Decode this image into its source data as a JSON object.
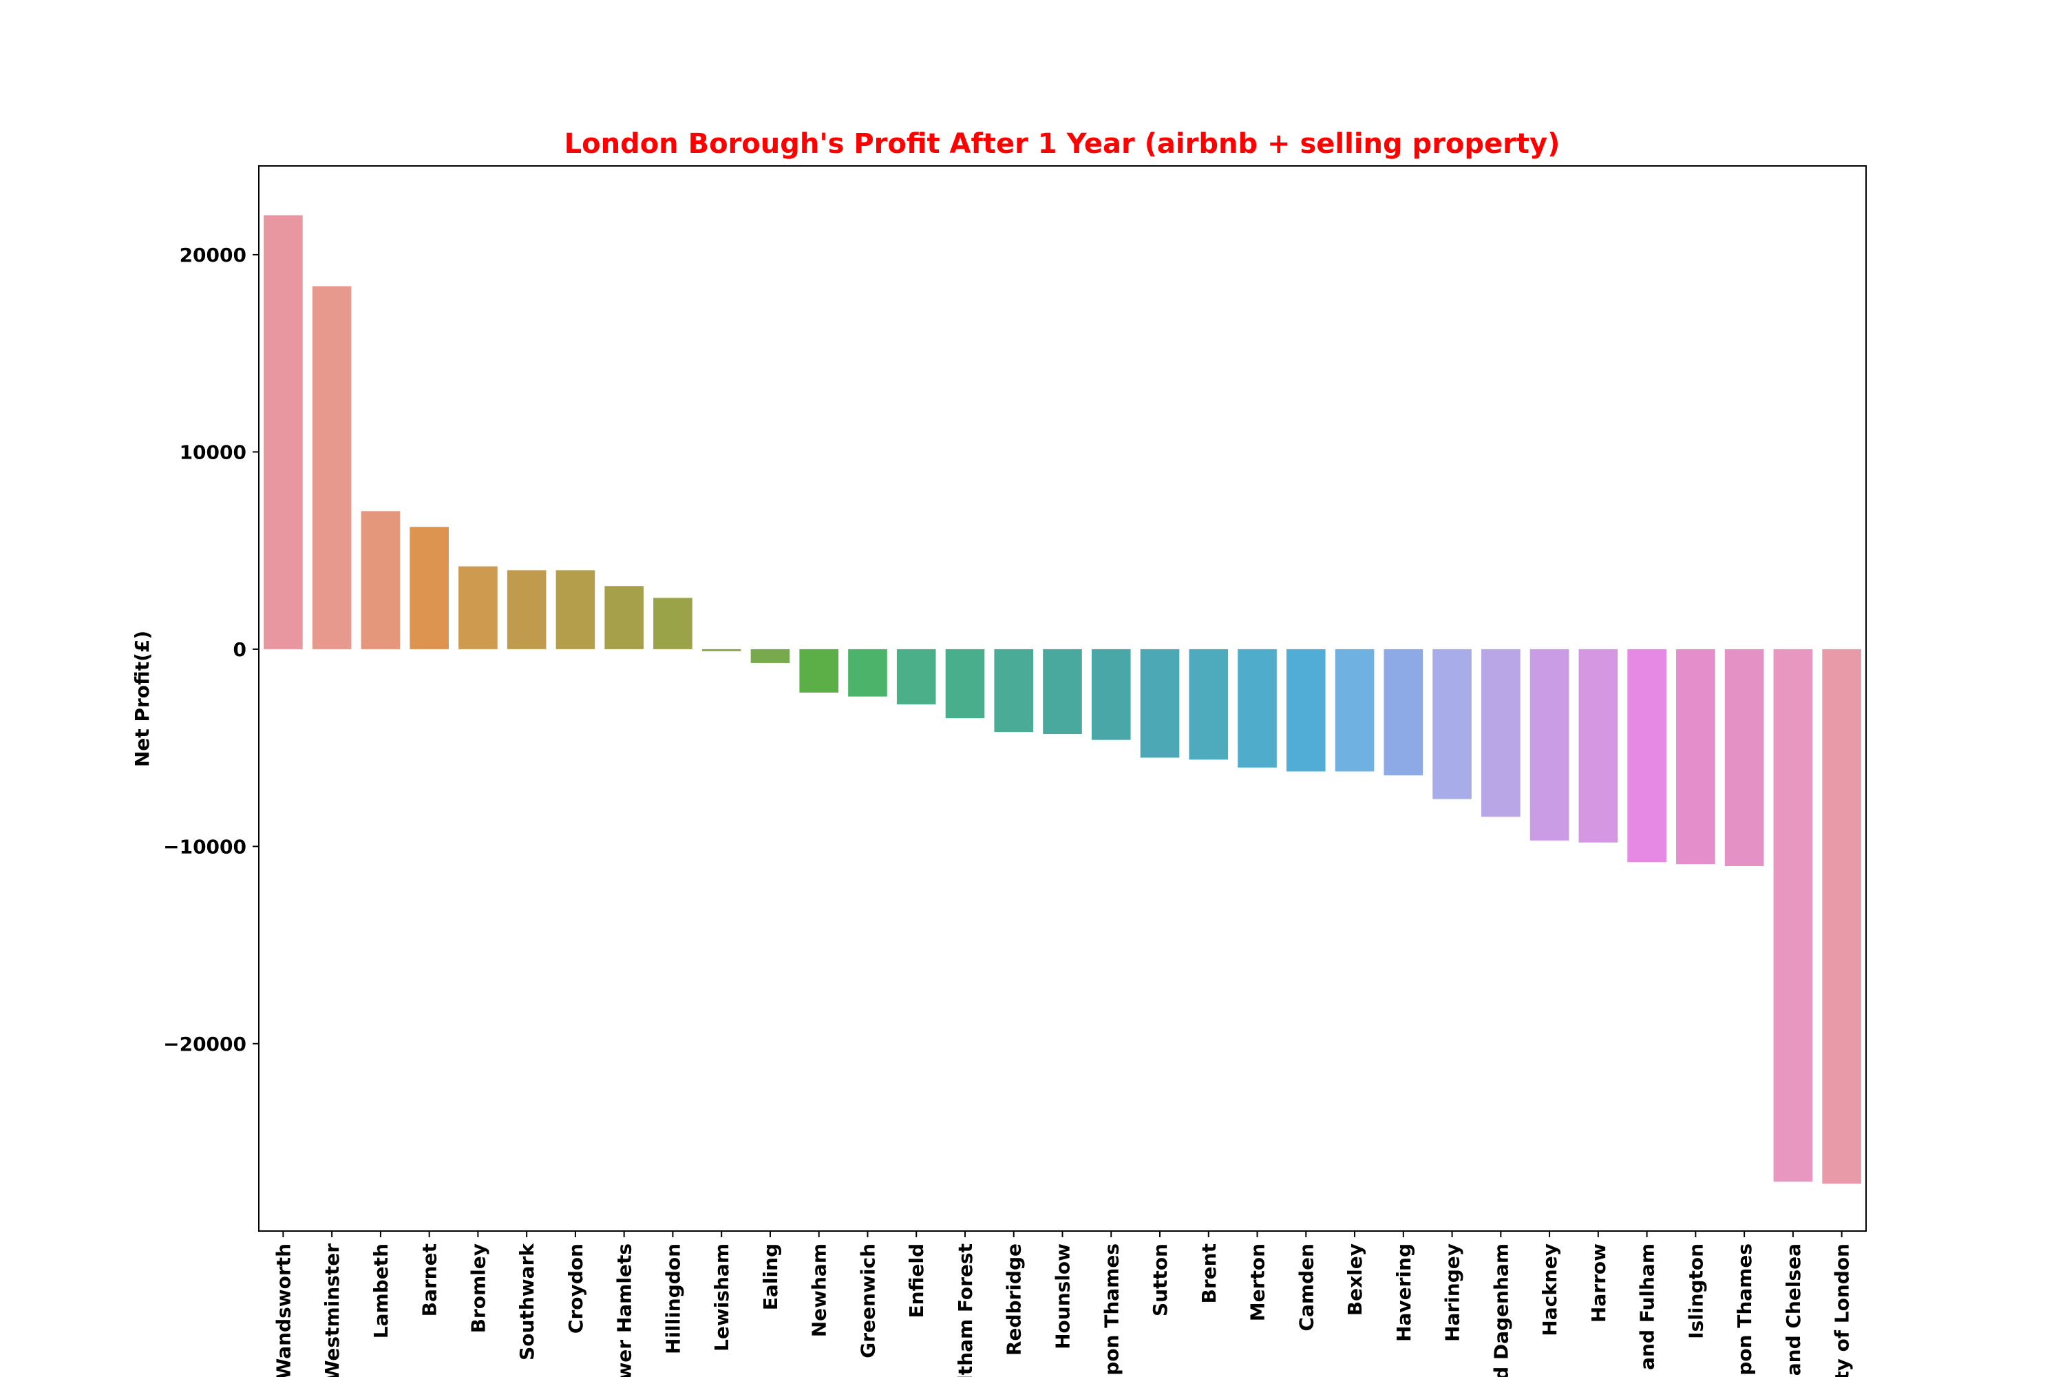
{
  "chart_data": {
    "type": "bar",
    "title": "London Borough's Profit After 1 Year (airbnb + selling property)",
    "xlabel": "",
    "ylabel": "Net Profit(£)",
    "ylim": [
      -29500,
      24500
    ],
    "yticks": [
      20000,
      10000,
      0,
      -10000,
      -20000
    ],
    "ytick_labels": [
      "20000",
      "10000",
      "0",
      "−10000",
      "−20000"
    ],
    "grid": false,
    "categories": [
      "Wandsworth",
      "Westminster",
      "Lambeth",
      "Barnet",
      "Bromley",
      "Southwark",
      "Croydon",
      "ower Hamlets",
      "Hillingdon",
      "Lewisham",
      "Ealing",
      "Newham",
      "Greenwich",
      "Enfield",
      "ltham Forest",
      "Redbridge",
      "Hounslow",
      "upon Thames",
      "Sutton",
      "Brent",
      "Merton",
      "Camden",
      "Bexley",
      "Havering",
      "Haringey",
      "d Dagenham",
      "Hackney",
      "Harrow",
      "n and Fulham",
      "Islington",
      "upon Thames",
      "and Chelsea",
      "ty of London"
    ],
    "values": [
      22000,
      18400,
      7000,
      6200,
      4200,
      4000,
      4000,
      3200,
      2600,
      -100,
      -700,
      -2200,
      -2400,
      -2800,
      -3500,
      -4200,
      -4300,
      -4600,
      -5500,
      -5600,
      -6000,
      -6200,
      -6200,
      -6400,
      -7600,
      -8500,
      -9700,
      -9800,
      -10800,
      -10900,
      -11000,
      -27000,
      -27100
    ],
    "colors": [
      "#e8969f",
      "#e6998c",
      "#e4977a",
      "#dd9450",
      "#ce9a4f",
      "#c09b4d",
      "#b49d4b",
      "#a6a04a",
      "#9ba348",
      "#88a647",
      "#78a94d",
      "#5cae47",
      "#4bb36a",
      "#4bb08a",
      "#48ae8b",
      "#4aab96",
      "#4aa99f",
      "#4aa7a8",
      "#4ca8b5",
      "#4dabbd",
      "#4faccb",
      "#52add6",
      "#6fb1e1",
      "#8eaae6",
      "#a8ace8",
      "#b9a6e6",
      "#cb9ce6",
      "#d596e2",
      "#e689e4",
      "#e48ecb",
      "#e492c6",
      "#e897c0",
      "#e89aa8"
    ],
    "title_color": "#ff0000"
  }
}
